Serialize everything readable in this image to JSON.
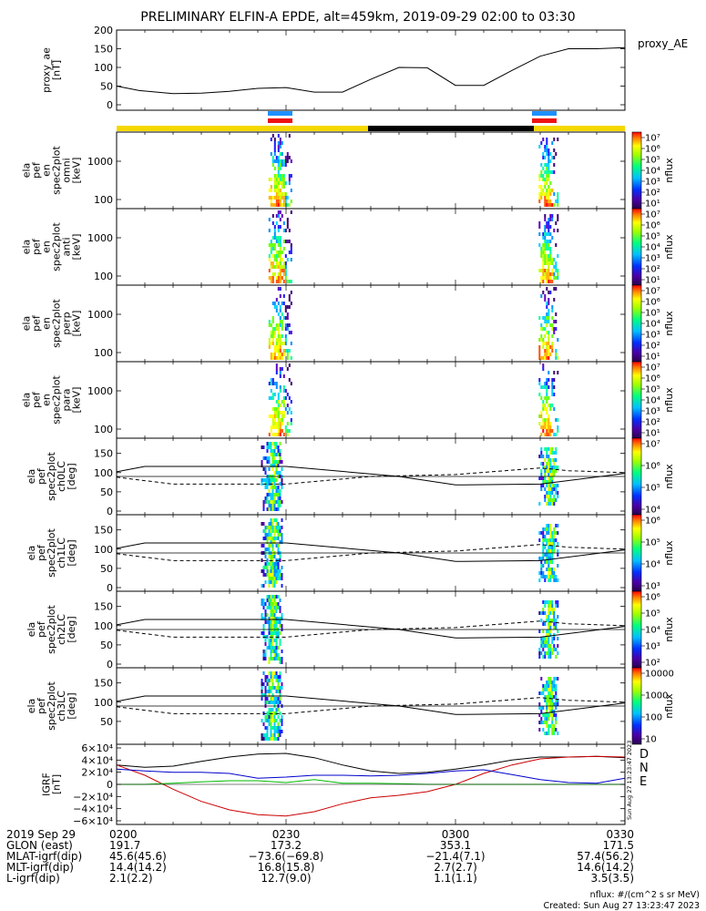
{
  "title": "PRELIMINARY ELFIN-A EPDE, alt=459km, 2019-09-29 02:00 to 03:30",
  "colors": {
    "sunlit": "#f5d800",
    "shadow": "#000000",
    "science_blue": "#1e90ff",
    "science_red": "#ee1111",
    "grf_D": "#cc0000",
    "grf_N": "#0000cc",
    "grf_E": "#00bb00"
  },
  "chart_data": [
    {
      "type": "line",
      "panel": "proxy_ae",
      "ylabel": [
        "proxy_ae",
        "[nT]"
      ],
      "legend": "proxy_AE",
      "ylim": [
        0,
        200
      ],
      "yticks": [
        "200",
        "150",
        "100",
        "50",
        "0"
      ],
      "x_minutes": [
        0,
        4,
        10,
        15,
        20,
        25,
        30,
        35,
        40,
        45,
        50,
        55,
        60,
        65,
        70,
        75,
        80,
        85,
        90
      ],
      "values": [
        50,
        38,
        30,
        31,
        36,
        44,
        46,
        34,
        34,
        68,
        100,
        99,
        52,
        52,
        92,
        130,
        150,
        150,
        153
      ]
    },
    {
      "type": "heatmap",
      "panel": "omni",
      "ylabel": [
        "ela",
        "pef",
        "en",
        "spec2plot",
        "omni",
        "[keV]"
      ],
      "yticks": [
        "1000",
        "100"
      ],
      "colorbar_ticks": [
        "10⁷",
        "10⁶",
        "10⁵",
        "10⁴",
        "10³",
        "10²",
        "10¹"
      ],
      "colorbar_label": "nflux"
    },
    {
      "type": "heatmap",
      "panel": "anti",
      "ylabel": [
        "ela",
        "pef",
        "en",
        "spec2plot",
        "anti",
        "[keV]"
      ],
      "yticks": [
        "1000",
        "100"
      ],
      "colorbar_ticks": [
        "10⁷",
        "10⁶",
        "10⁵",
        "10⁴",
        "10³",
        "10²",
        "10¹"
      ],
      "colorbar_label": "nflux"
    },
    {
      "type": "heatmap",
      "panel": "perp",
      "ylabel": [
        "ela",
        "pef",
        "en",
        "spec2plot",
        "perp",
        "[keV]"
      ],
      "yticks": [
        "1000",
        "100"
      ],
      "colorbar_ticks": [
        "10⁷",
        "10⁶",
        "10⁵",
        "10⁴",
        "10³",
        "10²",
        "10¹"
      ],
      "colorbar_label": "nflux"
    },
    {
      "type": "heatmap",
      "panel": "para",
      "ylabel": [
        "ela",
        "pef",
        "en",
        "spec2plot",
        "para",
        "[keV]"
      ],
      "yticks": [
        "1000",
        "100"
      ],
      "colorbar_ticks": [
        "10⁷",
        "10⁶",
        "10⁵",
        "10⁴",
        "10³",
        "10²",
        "10¹"
      ],
      "colorbar_label": "nflux"
    },
    {
      "type": "heatmap",
      "panel": "ch0LC",
      "ylabel": [
        "ela",
        "pef",
        "spec2plot",
        "ch0LC",
        "[deg]"
      ],
      "yticks": [
        "150",
        "100",
        "50",
        "0"
      ],
      "colorbar_ticks": [
        "10⁷",
        "10⁶",
        "10⁵",
        "10⁴"
      ],
      "colorbar_label": "nflux"
    },
    {
      "type": "heatmap",
      "panel": "ch1LC",
      "ylabel": [
        "ela",
        "pef",
        "spec2plot",
        "ch1LC",
        "[deg]"
      ],
      "yticks": [
        "150",
        "100",
        "50",
        "0"
      ],
      "colorbar_ticks": [
        "10⁶",
        "10⁵",
        "10⁴",
        "10³"
      ],
      "colorbar_label": "nflux"
    },
    {
      "type": "heatmap",
      "panel": "ch2LC",
      "ylabel": [
        "ela",
        "pef",
        "spec2plot",
        "ch2LC",
        "[deg]"
      ],
      "yticks": [
        "150",
        "100",
        "50",
        "0"
      ],
      "colorbar_ticks": [
        "10⁶",
        "10⁵",
        "10⁴",
        "10³",
        "10²"
      ],
      "colorbar_label": "nflux"
    },
    {
      "type": "heatmap",
      "panel": "ch3LC",
      "ylabel": [
        "ela",
        "pef",
        "spec2plot",
        "ch3LC",
        "[deg]"
      ],
      "yticks": [
        "150",
        "100",
        "50"
      ],
      "colorbar_ticks": [
        "10000",
        "1000",
        "100",
        "10"
      ],
      "colorbar_label": "nflux"
    },
    {
      "type": "line",
      "panel": "GRF",
      "ylabel": [
        "IGRF",
        "[nT]"
      ],
      "ylim": [
        -60000,
        60000
      ],
      "yticks": [
        "6×10⁴",
        "4×10⁴",
        "2×10⁴",
        "0",
        "−2×10⁴",
        "−4×10⁴",
        "−6×10⁴"
      ],
      "side_labels": [
        "D",
        "N",
        "E"
      ],
      "stamp": "Sun Aug 27 13:23:47 2023",
      "x_minutes": [
        0,
        5,
        10,
        15,
        20,
        25,
        30,
        35,
        40,
        45,
        50,
        55,
        60,
        65,
        70,
        75,
        80,
        85,
        90
      ],
      "series": [
        {
          "values": [
            32000,
            28000,
            30000,
            38000,
            45000,
            50000,
            51000,
            44000,
            32000,
            22000,
            18000,
            20000,
            25000,
            32000,
            40000,
            45000,
            45000,
            46000,
            44000
          ]
        },
        {
          "values": [
            32000,
            15000,
            -8000,
            -28000,
            -42000,
            -50000,
            -52000,
            -45000,
            -32000,
            -22000,
            -18000,
            -12000,
            0,
            18000,
            32000,
            42000,
            45000,
            46000,
            45000
          ]
        },
        {
          "values": [
            25000,
            22000,
            20000,
            20000,
            18000,
            10000,
            12000,
            15000,
            15000,
            14000,
            15000,
            18000,
            22000,
            24000,
            16000,
            8000,
            3000,
            2000,
            10000
          ]
        },
        {
          "values": [
            0,
            0,
            2000,
            4000,
            6000,
            6000,
            3000,
            8000,
            2000,
            2000,
            1000,
            0,
            0,
            0,
            0,
            0,
            0,
            0,
            0
          ]
        }
      ]
    }
  ],
  "footer": {
    "rows": [
      [
        "2019 Sep 29",
        "0200",
        "0230",
        "0300",
        "0330"
      ],
      [
        "GLON (east)",
        "191.7",
        "173.2",
        "353.1",
        "171.5"
      ],
      [
        "MLAT-igrf(dip)",
        "45.6(45.6)",
        "−73.6(−69.8)",
        "−21.4(7.1)",
        "57.4(56.2)"
      ],
      [
        "MLT-igrf(dip)",
        "14.4(14.2)",
        "16.8(15.8)",
        "2.7(2.7)",
        "14.6(14.2)"
      ],
      [
        "L-igrf(dip)",
        "2.1(2.2)",
        "12.7(9.0)",
        "1.1(1.1)",
        "3.5(3.5)"
      ]
    ],
    "units": "nflux: #/(cm^2 s sr MeV)",
    "created": "Created: Sun Aug 27 13:23:47 2023"
  }
}
